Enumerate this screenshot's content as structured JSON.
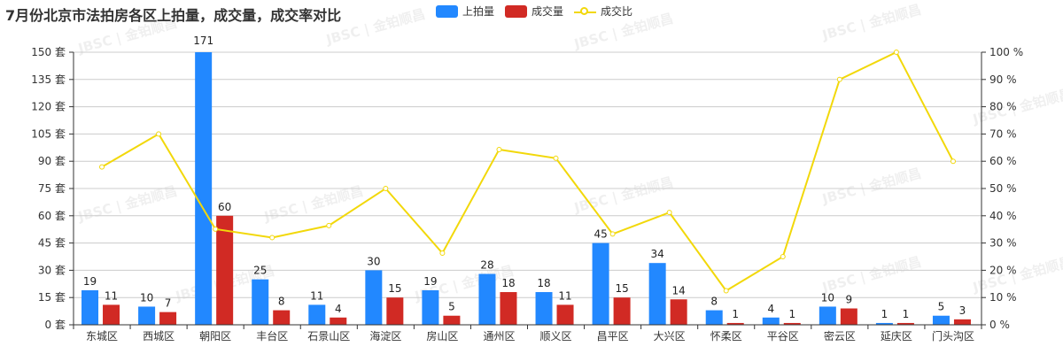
{
  "title": "7月份北京市法拍房各区上拍量，成交量，成交率对比",
  "legend": [
    {
      "label": "上拍量",
      "color": "#2288ff",
      "type": "bar"
    },
    {
      "label": "成交量",
      "color": "#d12a24",
      "type": "bar"
    },
    {
      "label": "成交比",
      "color": "#f2d80a",
      "type": "line"
    }
  ],
  "watermark": "JBSC | 金铂顺昌",
  "chart_data": {
    "type": "bar",
    "title": "7月份北京市法拍房各区上拍量，成交量，成交率对比",
    "categories": [
      "东城区",
      "西城区",
      "朝阳区",
      "丰台区",
      "石景山区",
      "海淀区",
      "房山区",
      "通州区",
      "顺义区",
      "昌平区",
      "大兴区",
      "怀柔区",
      "平谷区",
      "密云区",
      "延庆区",
      "门头沟区"
    ],
    "series": [
      {
        "name": "上拍量",
        "type": "bar",
        "axis": "left",
        "color": "#2288ff",
        "values": [
          19,
          10,
          171,
          25,
          11,
          30,
          19,
          28,
          18,
          45,
          34,
          8,
          4,
          10,
          1,
          5
        ]
      },
      {
        "name": "成交量",
        "type": "bar",
        "axis": "left",
        "color": "#d12a24",
        "values": [
          11,
          7,
          60,
          8,
          4,
          15,
          5,
          18,
          11,
          15,
          14,
          1,
          1,
          9,
          1,
          3
        ]
      },
      {
        "name": "成交比",
        "type": "line",
        "axis": "right",
        "color": "#f2d80a",
        "values": [
          57.9,
          70,
          35.1,
          32,
          36.4,
          50,
          26.3,
          64.3,
          61.1,
          33.3,
          41.2,
          12.5,
          25,
          90,
          100,
          60
        ]
      }
    ],
    "y_left": {
      "label": "",
      "unit": "套",
      "ticks": [
        0,
        15,
        30,
        45,
        60,
        75,
        90,
        105,
        120,
        135,
        150
      ],
      "ylim": [
        0,
        150
      ]
    },
    "y_right": {
      "label": "",
      "unit": "%",
      "ticks": [
        0,
        10,
        20,
        30,
        40,
        50,
        60,
        70,
        80,
        90,
        100
      ],
      "ylim": [
        0,
        100
      ]
    },
    "grid": true,
    "legend_position": "top"
  }
}
